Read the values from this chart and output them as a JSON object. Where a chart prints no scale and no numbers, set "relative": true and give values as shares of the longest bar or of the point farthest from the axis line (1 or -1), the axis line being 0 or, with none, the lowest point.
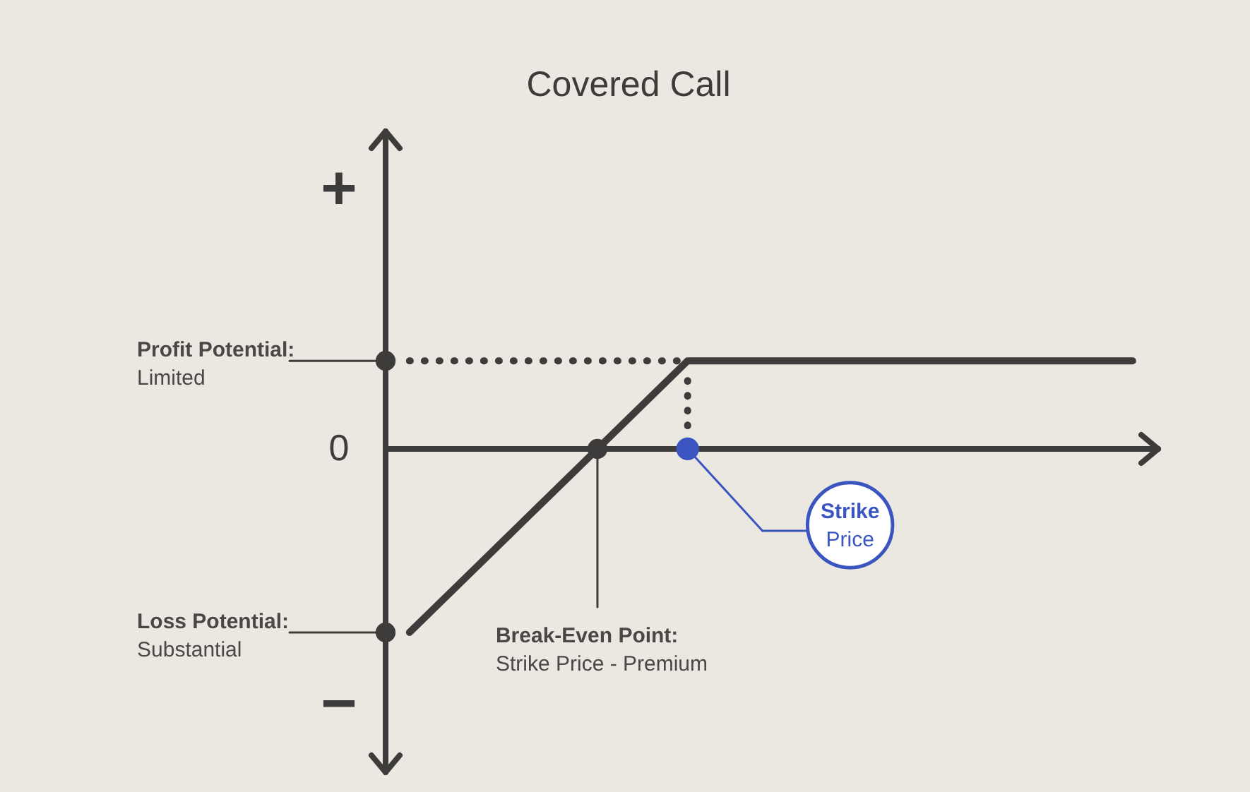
{
  "chart_data": {
    "type": "line",
    "title": "Covered Call",
    "relative": true,
    "categories": [
      null,
      null,
      null,
      null,
      null,
      null,
      null,
      null,
      null,
      null,
      null,
      null,
      null,
      null
    ],
    "series": [
      {
        "color": "#3d3c3b",
        "line_style": "solid",
        "values": [
          -1,
          -0.704,
          -0.408,
          -0.112,
          0.184,
          0.48,
          0.48,
          0.48,
          0.48,
          0.48,
          0.48,
          0.48,
          0.48,
          0.48
        ]
      },
      {
        "color": "#3d3c3b",
        "line_style": "dotted",
        "values": [
          0.48,
          0.48,
          0.48,
          0.48,
          0.48,
          0.48,
          null,
          null,
          null,
          null,
          null,
          null,
          null,
          null
        ]
      }
    ],
    "annotations": [
      "Profit Potential:\nLimited",
      "Loss Potential:\nSubstantial",
      {
        "text": "Break-Even Point:\nStrike Price - Premium",
        "y": 0
      },
      "Strike\nPrice",
      "+",
      "0",
      "−"
    ]
  }
}
